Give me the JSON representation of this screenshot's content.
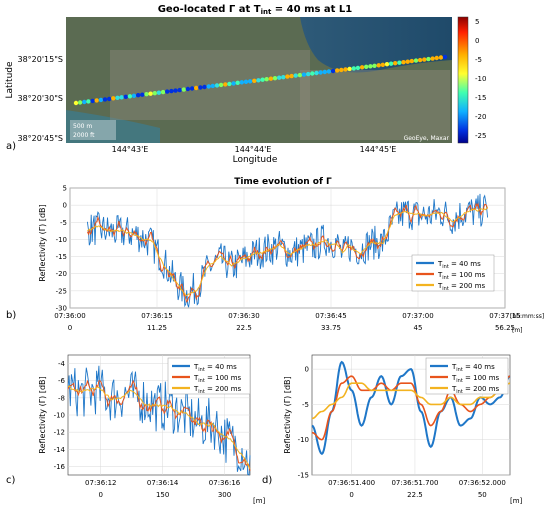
{
  "colors": {
    "blue": "#1f77c8",
    "orange": "#e8541c",
    "yellow": "#f3b320",
    "grid": "#d9d9d9",
    "axis": "#333333"
  },
  "panel_labels": [
    "a)",
    "b)",
    "c)",
    "d)"
  ],
  "map": {
    "title_prefix": "Geo-located Γ at T",
    "title_sub": "int",
    "title_suffix": " = 40 ms at L1",
    "ylabel": "Latitude",
    "xlabel": "Longitude",
    "yticks": [
      "38°20'15\"S",
      "38°20'30\"S",
      "38°20'45\"S"
    ],
    "xticks": [
      "144°43'E",
      "144°44'E",
      "144°45'E"
    ],
    "colorbar_ticks": [
      "5",
      "0",
      "-5",
      "-10",
      "-15",
      "-20",
      "-25"
    ],
    "scale_labels": [
      "500 m",
      "2000 ft"
    ],
    "credit": "GeoEye, Maxar"
  },
  "chart_data": [
    {
      "type": "line",
      "id": "b",
      "title": "Time evolution of Γ",
      "ylabel": "Reflectivity (Γ) [dB]",
      "ylim": [
        -30,
        5
      ],
      "yticks": [
        5,
        0,
        -5,
        -10,
        -15,
        -20,
        -25,
        -30
      ],
      "xlim": [
        0,
        75
      ],
      "xticks": [
        "07:36:00",
        "07:36:15",
        "07:36:30",
        "07:36:45",
        "07:37:00",
        "07:37:15"
      ],
      "xunit_time": "[hh:mm:ss]",
      "xticks_m": [
        "0",
        "11.25",
        "22.5",
        "33.75",
        "45",
        "56.25"
      ],
      "xunit_m": "[m]",
      "grid": true,
      "legend": "bottom-right",
      "series": [
        {
          "name": "T_int = 40 ms",
          "label": "T",
          "sub": "int",
          "suffix": " = 40 ms",
          "color": "blue"
        },
        {
          "name": "T_int = 100 ms",
          "label": "T",
          "sub": "int",
          "suffix": " = 100 ms",
          "color": "orange"
        },
        {
          "name": "T_int = 200 ms",
          "label": "T",
          "sub": "int",
          "suffix": " = 200 ms",
          "color": "yellow"
        }
      ],
      "x": [
        3,
        5,
        8,
        10,
        12,
        14,
        16,
        17,
        18,
        19,
        20,
        22,
        24,
        26,
        28,
        30,
        32,
        34,
        36,
        38,
        40,
        42,
        44,
        46,
        47,
        48,
        50,
        52,
        54,
        56,
        58,
        60,
        62,
        64,
        66,
        68,
        70,
        72
      ],
      "trend": [
        -7,
        -7,
        -8,
        -8,
        -9,
        -11,
        -16,
        -19,
        -22,
        -24,
        -26,
        -24,
        -18,
        -16,
        -18,
        -16,
        -14,
        -13,
        -12,
        -14,
        -13,
        -12,
        -10,
        -11,
        -15,
        -12,
        -13,
        -11,
        -11,
        -4,
        -2,
        -3,
        -3,
        -2,
        -4,
        -2,
        -2,
        -1
      ],
      "spread": 5
    },
    {
      "type": "line",
      "id": "c",
      "ylabel": "Reflectivity (Γ) [dB]",
      "ylim": [
        -17,
        -3
      ],
      "yticks": [
        -4,
        -6,
        -8,
        -10,
        -12,
        -14,
        -16
      ],
      "xlim": [
        0,
        5
      ],
      "xticks": [
        "07:36:12",
        "07:36:14",
        "07:36:16"
      ],
      "xticks_m": [
        "0",
        "150",
        "300"
      ],
      "xunit_m": "[m]",
      "grid": true,
      "legend": "top-right",
      "x": [
        0,
        0.4,
        0.8,
        1.2,
        1.6,
        2.0,
        2.4,
        2.8,
        3.2,
        3.6,
        4.0,
        4.4,
        4.8,
        5.0
      ],
      "trend": [
        -7,
        -7.5,
        -7,
        -8,
        -7.5,
        -8,
        -9,
        -9,
        -10,
        -11,
        -11,
        -13,
        -14,
        -16
      ],
      "spread": 3
    },
    {
      "type": "line",
      "id": "d",
      "ylabel": "Reflectivity (Γ) [dB]",
      "ylim": [
        -15,
        2
      ],
      "yticks": [
        0,
        -5,
        -10,
        -15
      ],
      "xlim": [
        0,
        1
      ],
      "xticks": [
        "07:36:51.400",
        "07:36:51.700",
        "07:36:52.000"
      ],
      "xticks_m": [
        "0",
        "22.5",
        "50"
      ],
      "xunit_m": "[m]",
      "grid": true,
      "legend": "top-right",
      "x": [
        0,
        0.05,
        0.1,
        0.15,
        0.2,
        0.25,
        0.3,
        0.35,
        0.4,
        0.45,
        0.5,
        0.55,
        0.6,
        0.65,
        0.7,
        0.75,
        0.8,
        0.85,
        0.9,
        0.95,
        1.0
      ],
      "y40": [
        -8,
        -12,
        -6,
        1,
        -3,
        -8,
        -4,
        -1,
        -5,
        -1,
        0,
        -6,
        -11,
        -6,
        -4,
        -8,
        -7,
        -4,
        -5,
        -4,
        -1
      ],
      "y100": [
        -9,
        -10,
        -6,
        -2,
        -1,
        -3,
        -3,
        -2,
        -3,
        -2,
        -2,
        -5,
        -8,
        -6,
        -3,
        -5,
        -6,
        -5,
        -4,
        -3,
        -1
      ],
      "y200": [
        -7,
        -6,
        -5,
        -4,
        -2,
        -2,
        -3,
        -3,
        -3,
        -3,
        -3,
        -4,
        -5,
        -5,
        -4,
        -5,
        -5,
        -4,
        -4,
        -3,
        -2
      ]
    }
  ]
}
